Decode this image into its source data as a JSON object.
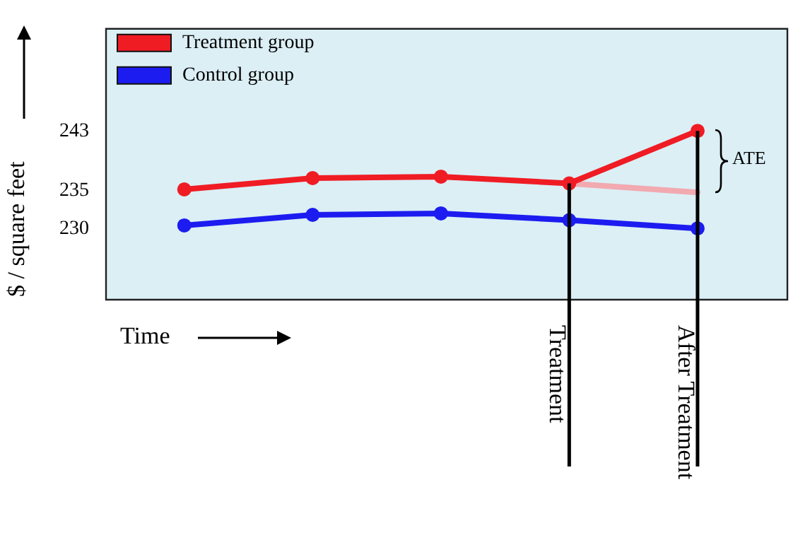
{
  "chart_data": {
    "type": "line",
    "xlabel": "Time",
    "ylabel": "$ / square feet",
    "categories": [
      null,
      null,
      null,
      "Treatment",
      "After Treatment"
    ],
    "series": [
      {
        "name": "Treatment group",
        "color": "#f01c24",
        "values": [
          235.2,
          236.7,
          236.9,
          236,
          243
        ]
      },
      {
        "name": "Control group",
        "color": "#1c1cf0",
        "values": [
          230.4,
          231.8,
          232,
          231.1,
          230
        ]
      },
      {
        "color": "#f2a9b0",
        "values": [
          null,
          null,
          null,
          236,
          234.8
        ],
        "marker": "none"
      }
    ],
    "ylim": [
      220.5,
      256.6
    ],
    "yticks": [
      230,
      235,
      243
    ],
    "grid": false,
    "legend": "top left",
    "marker": "circle",
    "line_style": "solid",
    "ref_lines": [
      {
        "axis": "x",
        "value": "Treatment"
      },
      {
        "axis": "x",
        "value": "After Treatment"
      }
    ],
    "annotations": [
      "ATE"
    ]
  }
}
